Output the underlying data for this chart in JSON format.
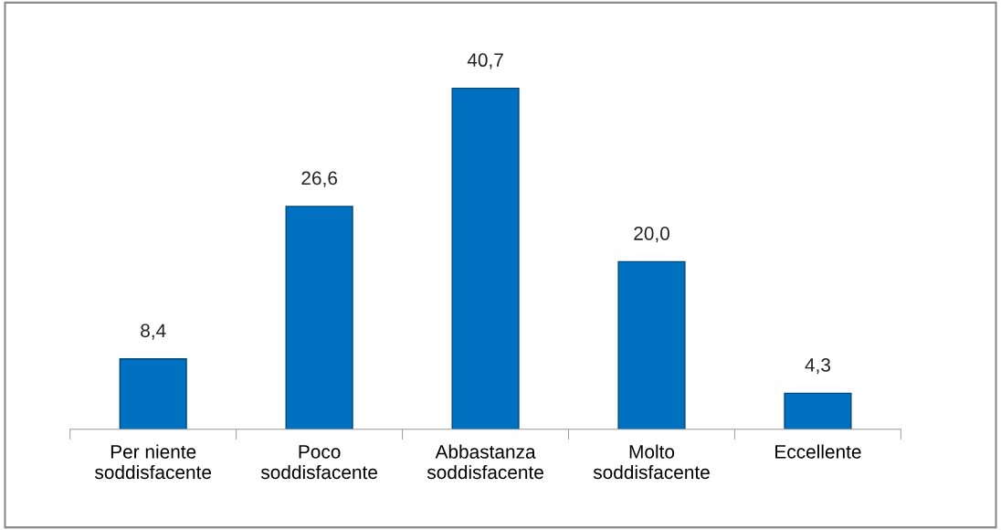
{
  "chart_data": {
    "type": "bar",
    "categories": [
      "Per niente\nsoddisfacente",
      "Poco\nsoddisfacente",
      "Abbastanza\nsoddisfacente",
      "Molto\nsoddisfacente",
      "Eccellente"
    ],
    "values": [
      8.4,
      26.6,
      40.7,
      20.0,
      4.3
    ],
    "value_labels": [
      "8,4",
      "26,6",
      "40,7",
      "20,0",
      "4,3"
    ],
    "color": "#0070c0",
    "grid": false,
    "legend": false
  }
}
